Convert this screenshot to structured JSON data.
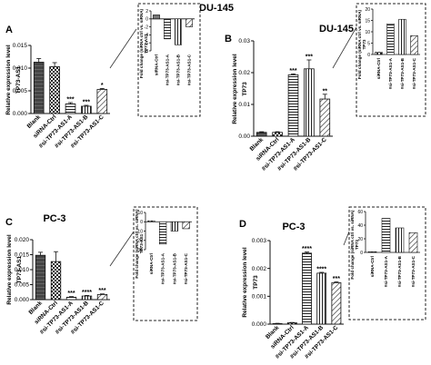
{
  "chart_data": [
    {
      "panel": "A",
      "title": "DU-145",
      "type": "bar",
      "ylabel": "Relative expression level",
      "ylabel2": "TP73-AS1",
      "ylim": [
        0,
        0.015
      ],
      "yticks": [
        "0.000",
        "0.005",
        "0.010",
        "0.015"
      ],
      "categories": [
        "Blank",
        "siRNA-Ctrl",
        "#si-TP73-AS1-A",
        "#si-TP73-AS1-B",
        "#si-TP73-AS1-C"
      ],
      "values": [
        0.0113,
        0.0103,
        0.0021,
        0.0016,
        0.0053
      ],
      "errors": [
        0.0008,
        0.0009,
        0.0003,
        0.0002,
        0.0002
      ],
      "significance": [
        "",
        "",
        "***",
        "***",
        "*"
      ],
      "inset": {
        "ylabel": "Fold change (siRNA ctrl vs. siRNA)",
        "ylabel2": "TP73-AS1",
        "ylim": [
          -8,
          2
        ],
        "yticks": [
          "2",
          "0",
          "-2",
          "-4",
          "-6",
          "-8"
        ],
        "categories": [
          "siRNA-Ctrl",
          "#si-TP73-AS1-A",
          "#si-TP73-AS1-B",
          "#si-TP73-AS1-C"
        ],
        "values": [
          1,
          -5,
          -6.5,
          -2
        ]
      }
    },
    {
      "panel": "B",
      "title": "DU-145",
      "type": "bar",
      "ylabel": "Relative expression level",
      "ylabel2": "TP73",
      "ylim": [
        0,
        0.03
      ],
      "yticks": [
        "0.00",
        "0.01",
        "0.02",
        "0.03"
      ],
      "categories": [
        "Blank",
        "siRNA-Ctrl",
        "#si-TP73-AS1-A",
        "#si-TP73-AS1-B",
        "#si-TP73-AS1-C"
      ],
      "values": [
        0.0012,
        0.0012,
        0.0193,
        0.0212,
        0.0117
      ],
      "errors": [
        0.0002,
        0.0002,
        0.0003,
        0.0028,
        0.0015
      ],
      "significance": [
        "",
        "",
        "***",
        "***",
        "**"
      ],
      "inset": {
        "ylabel": "Fold change (siRNA ctrl vs. siRNA)",
        "ylabel2": "TP73",
        "ylim": [
          0,
          20
        ],
        "yticks": [
          "20",
          "15",
          "10",
          "5",
          "0"
        ],
        "categories": [
          "siRNA-Ctrl",
          "#si-TP73-AS1-A",
          "#si-TP73-AS1-B",
          "#si-TP73-AS1-C"
        ],
        "values": [
          1,
          13.5,
          15.5,
          8.3
        ]
      }
    },
    {
      "panel": "C",
      "title": "PC-3",
      "type": "bar",
      "ylabel": "Relative expression level",
      "ylabel2": "TP73-AS1",
      "ylim": [
        0,
        0.02
      ],
      "yticks": [
        "0.000",
        "0.005",
        "0.010",
        "0.015",
        "0.020"
      ],
      "categories": [
        "Blank",
        "siRNA-Ctrl",
        "#si-TP73-AS1-A",
        "#si-TP73-AS1-B",
        "#si-TP73-AS1-C"
      ],
      "values": [
        0.0148,
        0.0127,
        0.0008,
        0.0012,
        0.0017
      ],
      "errors": [
        0.001,
        0.0033,
        0.0002,
        0.0002,
        0.0002
      ],
      "significance": [
        "",
        "",
        "***",
        "****",
        "***"
      ],
      "inset": {
        "ylabel": "Fold change (siRNA ctrl vs. siRNA)",
        "ylabel2": "TP73-AS1",
        "ylim": [
          -30,
          10
        ],
        "yticks": [
          "10",
          "0",
          "-10",
          "-20",
          "-30"
        ],
        "categories": [
          "siRNA-Ctrl",
          "#si-TP73-AS1-A",
          "#si-TP73-AS1-B",
          "#si-TP73-AS1-C"
        ],
        "values": [
          1,
          -24,
          -10,
          -7.5
        ]
      }
    },
    {
      "panel": "D",
      "title": "PC-3",
      "type": "bar",
      "ylabel": "Relative expression level",
      "ylabel2": "TP73",
      "ylim": [
        0,
        0.003
      ],
      "yticks": [
        "0.000",
        "0.001",
        "0.002",
        "0.003"
      ],
      "categories": [
        "Blank",
        "siRNA-Ctrl",
        "#si-TP73-AS1-A",
        "#si-TP73-AS1-B",
        "#si-TP73-AS1-C"
      ],
      "values": [
        2e-05,
        5e-05,
        0.00255,
        0.00183,
        0.00149
      ],
      "errors": [
        1e-05,
        1e-05,
        4e-05,
        3e-05,
        3e-05
      ],
      "significance": [
        "",
        "",
        "****",
        "****",
        "***"
      ],
      "inset": {
        "ylabel": "Fold change (siRNA ctrl vs. siRNA)",
        "ylabel2": "TP73",
        "ylim": [
          0,
          60
        ],
        "yticks": [
          "60",
          "40",
          "20",
          "0"
        ],
        "categories": [
          "siRNA-Ctrl",
          "#si-TP73-AS1-A",
          "#si-TP73-AS1-B",
          "#si-TP73-AS1-C"
        ],
        "values": [
          1,
          50,
          36,
          29
        ]
      }
    }
  ]
}
